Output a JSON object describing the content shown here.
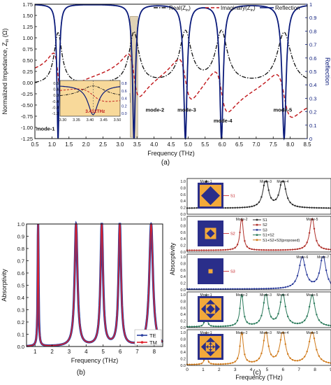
{
  "chart_data": [
    {
      "panel": "(a)",
      "type": "line",
      "xlabel": "Frequency (THz)",
      "ylabel_left": "Normalized Impedance, Z",
      "ylabel_left_sub": "in",
      "ylabel_left_unit": " (Ω)",
      "ylabel_right": "Reflection",
      "xlim": [
        0.5,
        8.5
      ],
      "ylim_left": [
        -1.25,
        1.75
      ],
      "ylim_right": [
        0,
        1
      ],
      "xticks": [
        "0.5",
        "1.0",
        "1.5",
        "2.0",
        "2.5",
        "3.0",
        "3.5",
        "4.0",
        "4.5",
        "5.0",
        "5.5",
        "6.0",
        "6.5",
        "7.0",
        "7.5",
        "8.0",
        "8.5"
      ],
      "yticks_left": [
        "-1.25",
        "-1.00",
        "-0.75",
        "-0.50",
        "-0.25",
        "0.00",
        "0.25",
        "0.50",
        "0.75",
        "1.00",
        "1.25",
        "1.50",
        "1.75"
      ],
      "yticks_right": [
        "0",
        "0.1",
        "0.2",
        "0.3",
        "0.4",
        "0.5",
        "0.6",
        "0.7",
        "0.8",
        "0.9",
        "1"
      ],
      "legend": [
        "Real(Z",
        "Imaginary(Z",
        "Reflection"
      ],
      "legend_sub": "in",
      "modes": [
        {
          "label": "mode-1",
          "x": 1.18
        },
        {
          "label": "mode-2",
          "x": 3.41
        },
        {
          "label": "mode-3",
          "x": 4.92
        },
        {
          "label": "mode-4",
          "x": 5.98
        },
        {
          "label": "mode-5",
          "x": 7.82
        }
      ],
      "inset": {
        "xticks": [
          "3.30",
          "3.35",
          "3.40",
          "3.45",
          "3.50"
        ],
        "yticks_left": [
          "0.8",
          "0.4",
          "0.0",
          "-0.4",
          "-0.8",
          "-1.2"
        ],
        "yticks_right": [
          "0.8",
          "0.6",
          "0.4",
          "0.2",
          "0.0"
        ],
        "annotation": "3.412THz"
      },
      "colors": {
        "real": "#111111",
        "imag": "#c0161a",
        "refl": "#0a1a7a"
      }
    },
    {
      "panel": "(b)",
      "type": "line",
      "xlabel": "Frequency (THz)",
      "ylabel": "Absorptivity",
      "xlim": [
        0.5,
        8.5
      ],
      "ylim": [
        0,
        1
      ],
      "xticks": [
        "1",
        "2",
        "3",
        "4",
        "5",
        "6",
        "7",
        "8"
      ],
      "yticks": [
        "0.0",
        "0.1",
        "0.2",
        "0.3",
        "0.4",
        "0.5",
        "0.6",
        "0.7",
        "0.8",
        "0.9",
        "1.0"
      ],
      "series": [
        {
          "name": "TE",
          "color": "#2a3fa0"
        },
        {
          "name": "TM",
          "color": "#e0202a"
        }
      ],
      "peaks": [
        1.18,
        3.41,
        4.92,
        5.98,
        7.82
      ]
    },
    {
      "panel": "(c)",
      "type": "line",
      "xlabel": "Frequency (THz)",
      "ylabel": "Absorptivity",
      "xlim": [
        0,
        9
      ],
      "xticks": [
        "0",
        "1",
        "2",
        "3",
        "4",
        "5",
        "6",
        "7",
        "8",
        "9"
      ],
      "yticks": [
        "0.0",
        "0.2",
        "0.4",
        "0.6",
        "0.8",
        "1.0"
      ],
      "legend": [
        "S1",
        "S2",
        "S3",
        "S1+S2",
        "S1+S2+S3(proposed)"
      ],
      "subplots": [
        {
          "series": "S1",
          "color": "#2b2b2b",
          "modes": [
            {
              "label": "Mode-1",
              "x": 1.18
            },
            {
              "label": "Mode-3",
              "x": 4.92
            },
            {
              "label": "Mode-4",
              "x": 5.98
            }
          ],
          "label": "S1"
        },
        {
          "series": "S2",
          "color": "#b0302a",
          "modes": [
            {
              "label": "Mode-2",
              "x": 3.41
            },
            {
              "label": "Mode-5",
              "x": 7.82
            }
          ],
          "label": "S2"
        },
        {
          "series": "S3",
          "color": "#2a3b9a",
          "modes": [
            {
              "label": "Mode-6",
              "x": 7.2
            },
            {
              "label": "Mode-7",
              "x": 8.5
            }
          ],
          "label": "S3"
        },
        {
          "series": "S1+S2",
          "color": "#2a7a5a",
          "modes": [
            {
              "label": "Mode-1",
              "x": 1.18
            },
            {
              "label": "Mode-2",
              "x": 3.41
            },
            {
              "label": "Mode-3",
              "x": 4.92
            },
            {
              "label": "Mode-4",
              "x": 5.98
            },
            {
              "label": "Mode-5",
              "x": 7.82
            }
          ],
          "label": ""
        },
        {
          "series": "S1+S2+S3(proposed)",
          "color": "#d07a1a",
          "modes": [
            {
              "label": "Mode-1",
              "x": 1.18
            },
            {
              "label": "Mode-2",
              "x": 3.41
            },
            {
              "label": "Mode-3",
              "x": 4.92
            },
            {
              "label": "Mode-4",
              "x": 5.98
            },
            {
              "label": "Mode-5",
              "x": 7.82
            }
          ],
          "label": ""
        }
      ]
    }
  ]
}
